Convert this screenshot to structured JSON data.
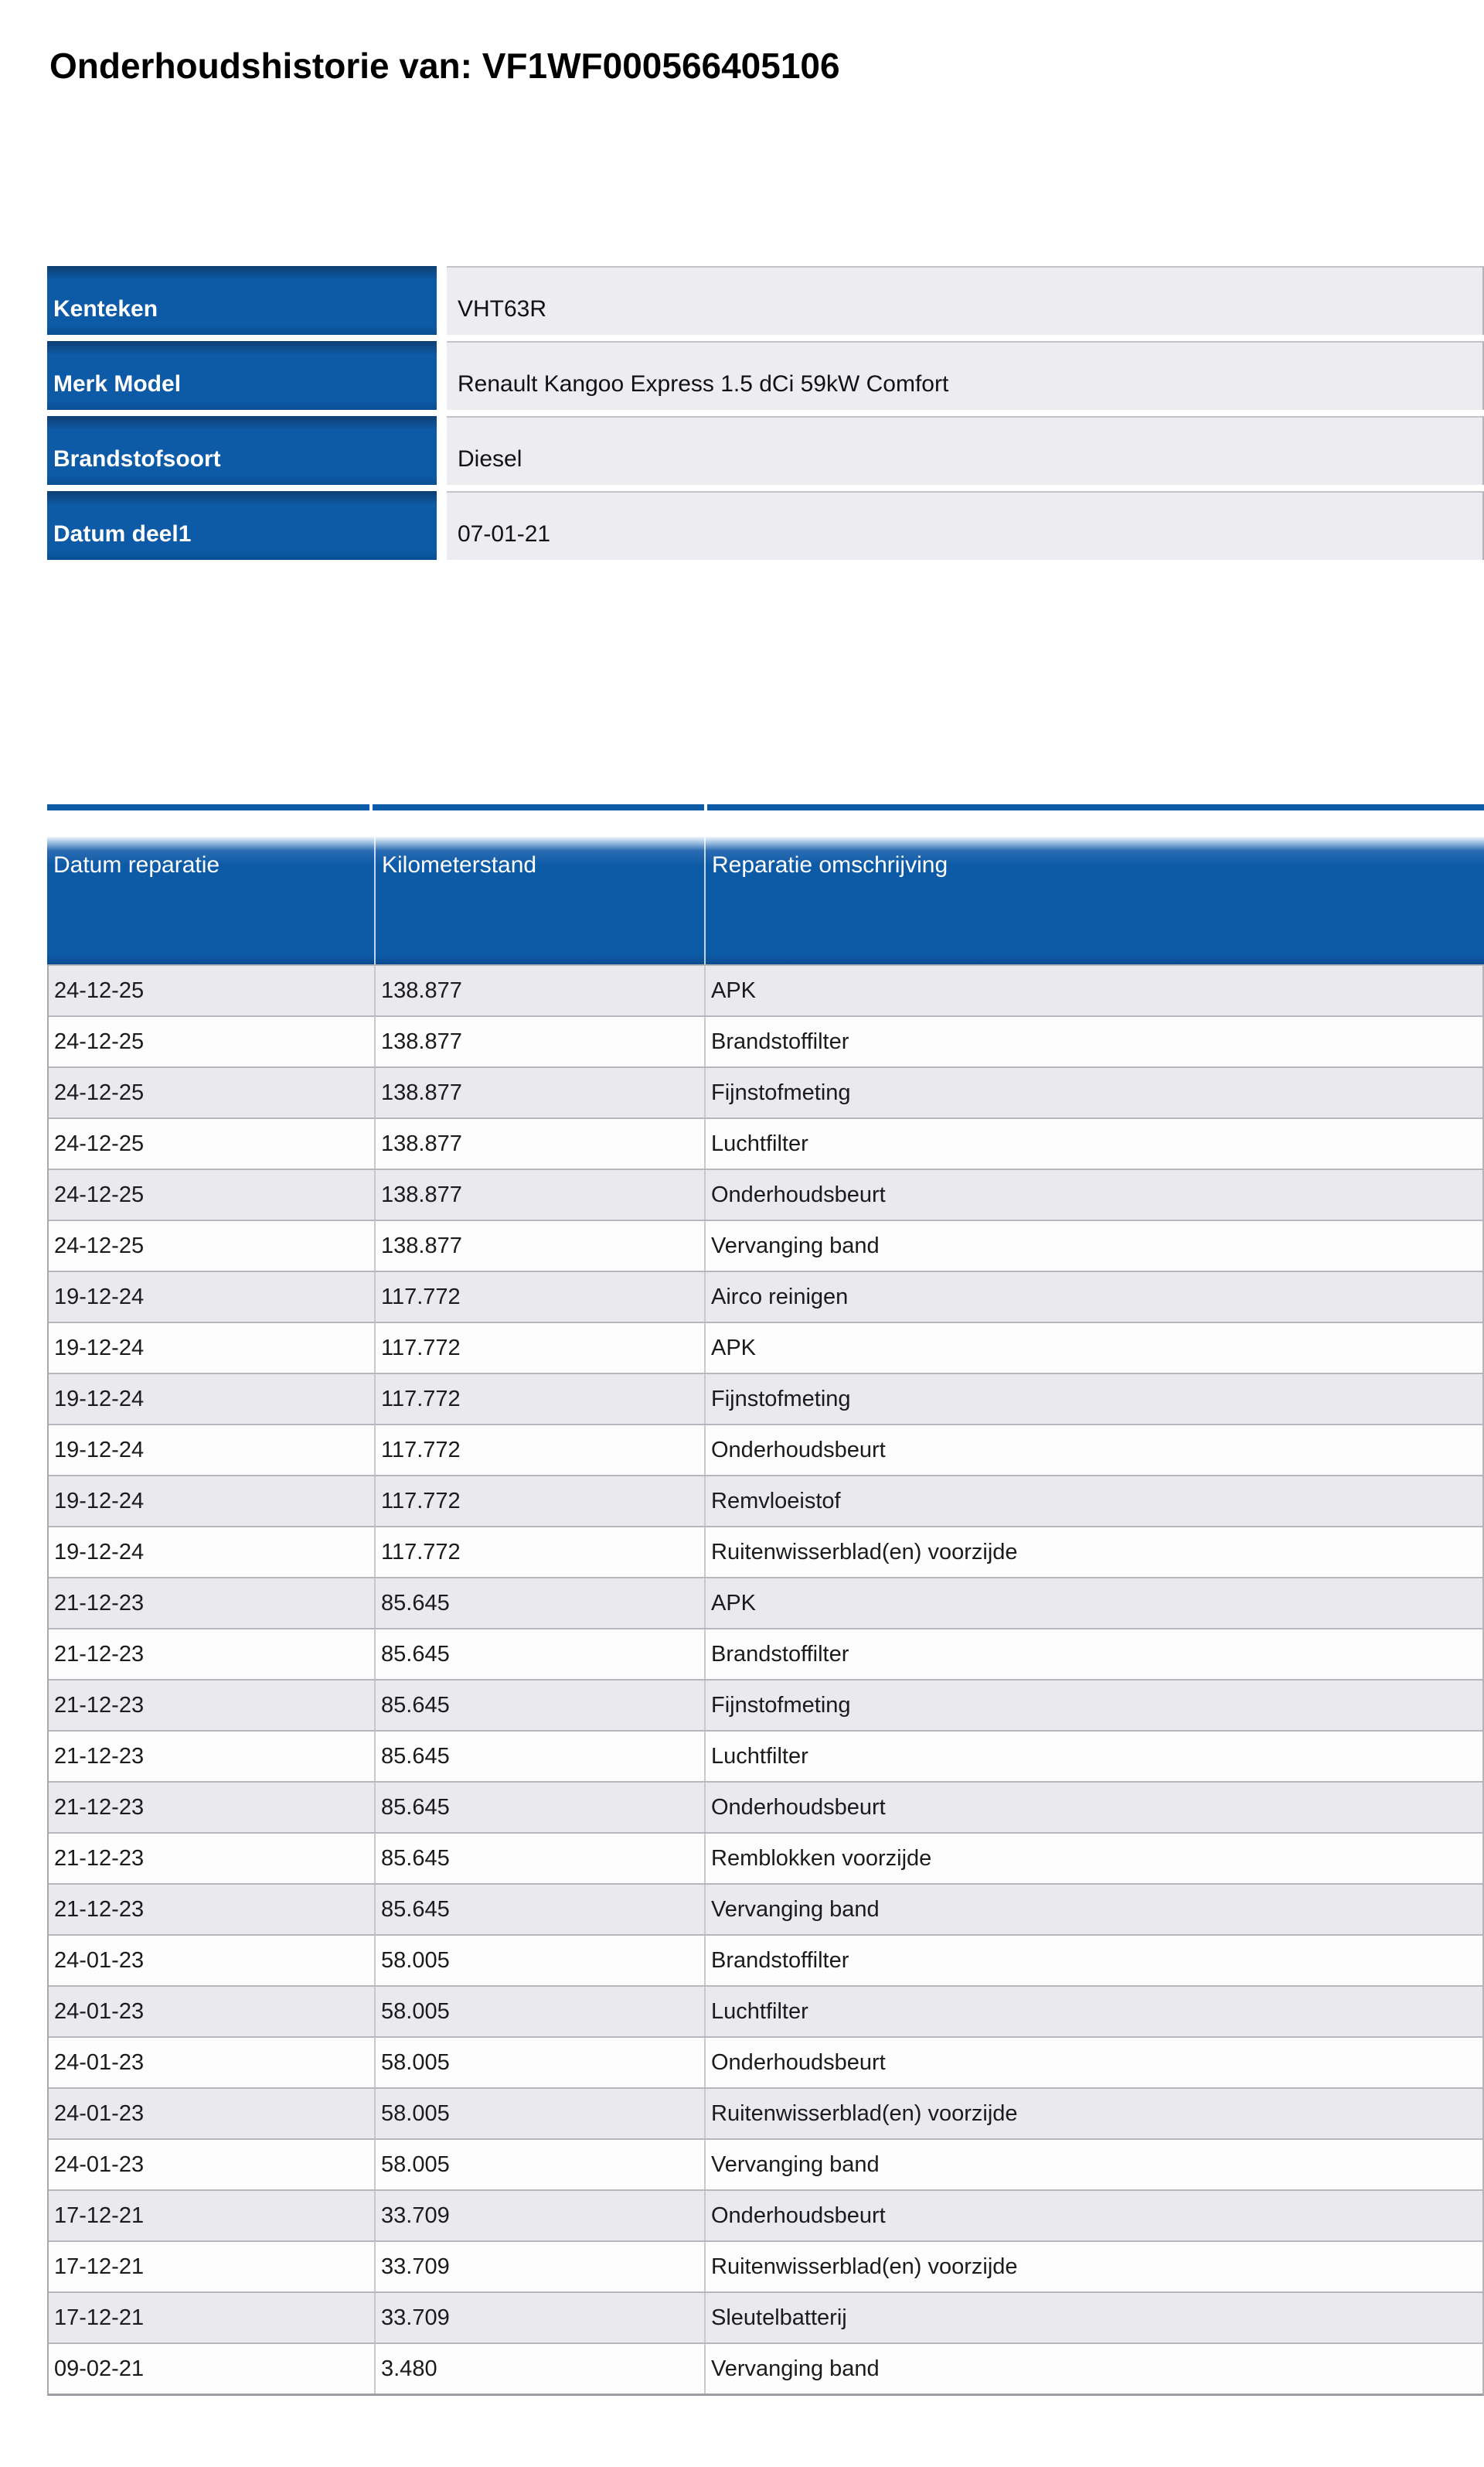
{
  "page": {
    "title": "Onderhoudshistorie van: VF1WF000566405106"
  },
  "vehicle_info": {
    "rows": [
      {
        "label": "Kenteken",
        "value": "VHT63R"
      },
      {
        "label": "Merk Model",
        "value": "Renault Kangoo Express 1.5 dCi 59kW Comfort"
      },
      {
        "label": "Brandstofsoort",
        "value": "Diesel"
      },
      {
        "label": "Datum deel1",
        "value": "07-01-21"
      }
    ]
  },
  "maintenance_table": {
    "columns": {
      "date": "Datum reparatie",
      "km": "Kilometerstand",
      "description": "Reparatie omschrijving"
    },
    "rows": [
      {
        "date": "24-12-25",
        "km": "138.877",
        "description": "APK"
      },
      {
        "date": "24-12-25",
        "km": "138.877",
        "description": "Brandstoffilter"
      },
      {
        "date": "24-12-25",
        "km": "138.877",
        "description": "Fijnstofmeting"
      },
      {
        "date": "24-12-25",
        "km": "138.877",
        "description": "Luchtfilter"
      },
      {
        "date": "24-12-25",
        "km": "138.877",
        "description": "Onderhoudsbeurt"
      },
      {
        "date": "24-12-25",
        "km": "138.877",
        "description": "Vervanging band"
      },
      {
        "date": "19-12-24",
        "km": "117.772",
        "description": "Airco reinigen"
      },
      {
        "date": "19-12-24",
        "km": "117.772",
        "description": "APK"
      },
      {
        "date": "19-12-24",
        "km": "117.772",
        "description": "Fijnstofmeting"
      },
      {
        "date": "19-12-24",
        "km": "117.772",
        "description": "Onderhoudsbeurt"
      },
      {
        "date": "19-12-24",
        "km": "117.772",
        "description": "Remvloeistof"
      },
      {
        "date": "19-12-24",
        "km": "117.772",
        "description": "Ruitenwisserblad(en) voorzijde"
      },
      {
        "date": "21-12-23",
        "km": "85.645",
        "description": "APK"
      },
      {
        "date": "21-12-23",
        "km": "85.645",
        "description": "Brandstoffilter"
      },
      {
        "date": "21-12-23",
        "km": "85.645",
        "description": "Fijnstofmeting"
      },
      {
        "date": "21-12-23",
        "km": "85.645",
        "description": "Luchtfilter"
      },
      {
        "date": "21-12-23",
        "km": "85.645",
        "description": "Onderhoudsbeurt"
      },
      {
        "date": "21-12-23",
        "km": "85.645",
        "description": "Remblokken voorzijde"
      },
      {
        "date": "21-12-23",
        "km": "85.645",
        "description": "Vervanging band"
      },
      {
        "date": "24-01-23",
        "km": "58.005",
        "description": "Brandstoffilter"
      },
      {
        "date": "24-01-23",
        "km": "58.005",
        "description": "Luchtfilter"
      },
      {
        "date": "24-01-23",
        "km": "58.005",
        "description": "Onderhoudsbeurt"
      },
      {
        "date": "24-01-23",
        "km": "58.005",
        "description": "Ruitenwisserblad(en) voorzijde"
      },
      {
        "date": "24-01-23",
        "km": "58.005",
        "description": "Vervanging band"
      },
      {
        "date": "17-12-21",
        "km": "33.709",
        "description": "Onderhoudsbeurt"
      },
      {
        "date": "17-12-21",
        "km": "33.709",
        "description": "Ruitenwisserblad(en) voorzijde"
      },
      {
        "date": "17-12-21",
        "km": "33.709",
        "description": "Sleutelbatterij"
      },
      {
        "date": "09-02-21",
        "km": "3.480",
        "description": "Vervanging band"
      }
    ]
  },
  "colors": {
    "table_blue": "#0d5aa6",
    "info_value_bg": "#ececf1",
    "row_odd_bg": "#e9e9ee",
    "row_even_bg": "#fdfdfe",
    "text": "#1a1a1a"
  }
}
